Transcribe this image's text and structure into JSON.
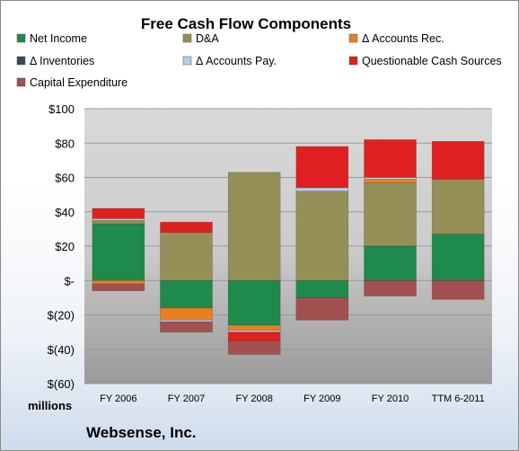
{
  "chart_data": {
    "type": "bar",
    "stacked": true,
    "title": "Free Cash Flow Components",
    "ylabel": "",
    "xlabel": "",
    "unit_label": "millions",
    "company": "Websense, Inc.",
    "ylim": [
      -60,
      100
    ],
    "yticks": [
      100,
      80,
      60,
      40,
      20,
      0,
      -20,
      -40,
      -60
    ],
    "ytick_labels": [
      "$100",
      "$80",
      "$60",
      "$40",
      "$20",
      "$-",
      "$(20)",
      "$(40)",
      "$(60)"
    ],
    "categories": [
      "FY 2006",
      "FY 2007",
      "FY 2008",
      "FY 2009",
      "FY 2010",
      "TTM 6-2011"
    ],
    "legend_placement": "top",
    "grid": true,
    "series": [
      {
        "name": "Net Income",
        "color": "#1e8a4c",
        "values": [
          33,
          -16,
          -26,
          -10,
          20,
          27
        ]
      },
      {
        "name": "D&A",
        "color": "#948e57",
        "values": [
          2,
          28,
          63,
          52,
          37,
          32
        ]
      },
      {
        "name": "Δ Accounts Rec.",
        "color": "#e8801e",
        "values": [
          -2,
          -7,
          -3,
          0,
          2,
          0
        ]
      },
      {
        "name": "Δ Inventories",
        "color": "#34495e",
        "values": [
          0,
          0,
          0,
          0,
          0,
          0
        ]
      },
      {
        "name": "Δ Accounts Pay.",
        "color": "#b8cce4",
        "values": [
          1,
          -1,
          -1,
          2,
          1,
          0
        ]
      },
      {
        "name": "Questionable Cash Sources",
        "color": "#e02020",
        "values": [
          6,
          6,
          -5,
          24,
          22,
          22
        ]
      },
      {
        "name": "Capital Expenditure",
        "color": "#a35050",
        "values": [
          -4,
          -6,
          -8,
          -13,
          -9,
          -11
        ]
      }
    ]
  }
}
